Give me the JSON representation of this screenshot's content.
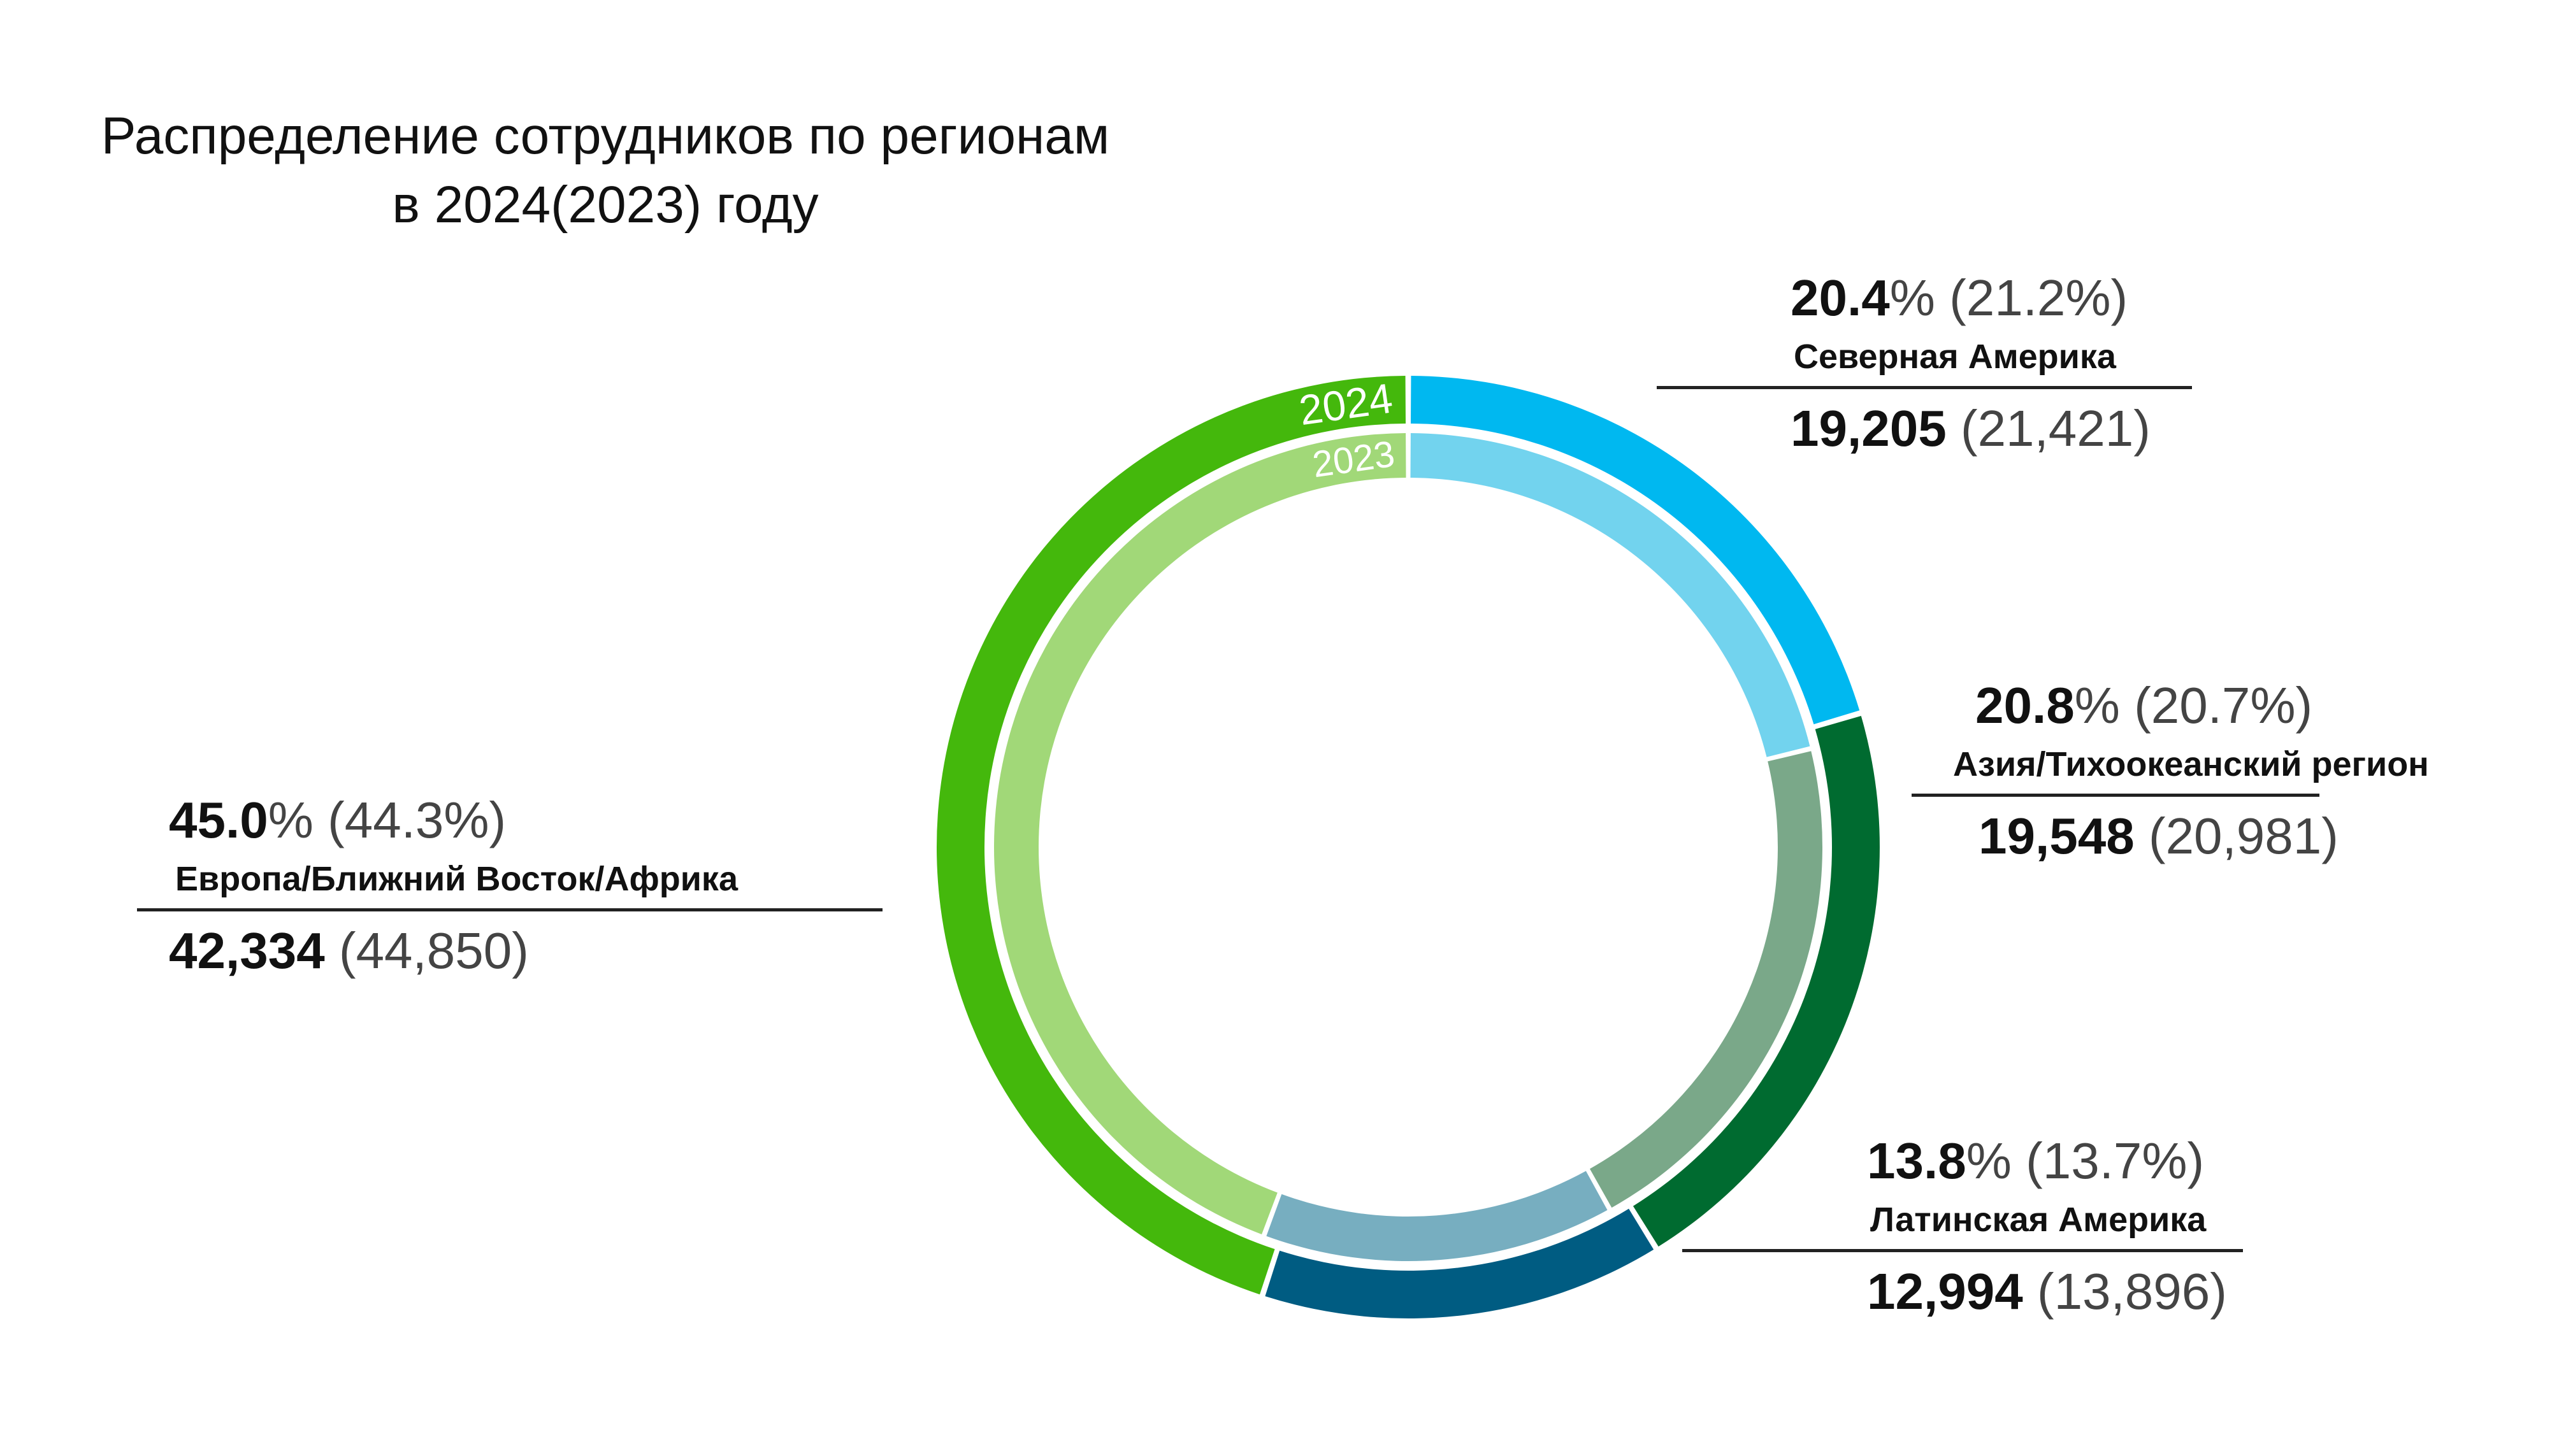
{
  "title": {
    "line1": "Распределение сотрудников по регионам",
    "line2": "в 2024(2023) году"
  },
  "chart_data": {
    "type": "donut",
    "rings": [
      {
        "name": "2024",
        "position": "outer"
      },
      {
        "name": "2023",
        "position": "inner"
      }
    ],
    "segments": [
      {
        "region": "Северная Америка",
        "pct_2024": "20.4",
        "pct_2023": "21.2",
        "count_2024": "19,205",
        "count_2023": "21,421",
        "value_2024": 19205,
        "value_2023": 21421,
        "color_2024": "#00b8f0",
        "color_2023": "#72d3ee"
      },
      {
        "region": "Азия/Тихоокеанский регион",
        "pct_2024": "20.8",
        "pct_2023": "20.7",
        "count_2024": "19,548",
        "count_2023": "20,981",
        "value_2024": 19548,
        "value_2023": 20981,
        "color_2024": "#006b30",
        "color_2023": "#7aa889"
      },
      {
        "region": "Латинская Америка",
        "pct_2024": "13.8",
        "pct_2023": "13.7",
        "count_2024": "12,994",
        "count_2023": "13,896",
        "value_2024": 12994,
        "value_2023": 13896,
        "color_2024": "#005c82",
        "color_2023": "#77aec0"
      },
      {
        "region": "Европа/Ближний Восток/Африка",
        "pct_2024": "45.0",
        "pct_2023": "44.3",
        "count_2024": "42,334",
        "count_2023": "44,850",
        "value_2024": 42334,
        "value_2023": 44850,
        "color_2024": "#44b80c",
        "color_2023": "#a1d878"
      }
    ]
  }
}
